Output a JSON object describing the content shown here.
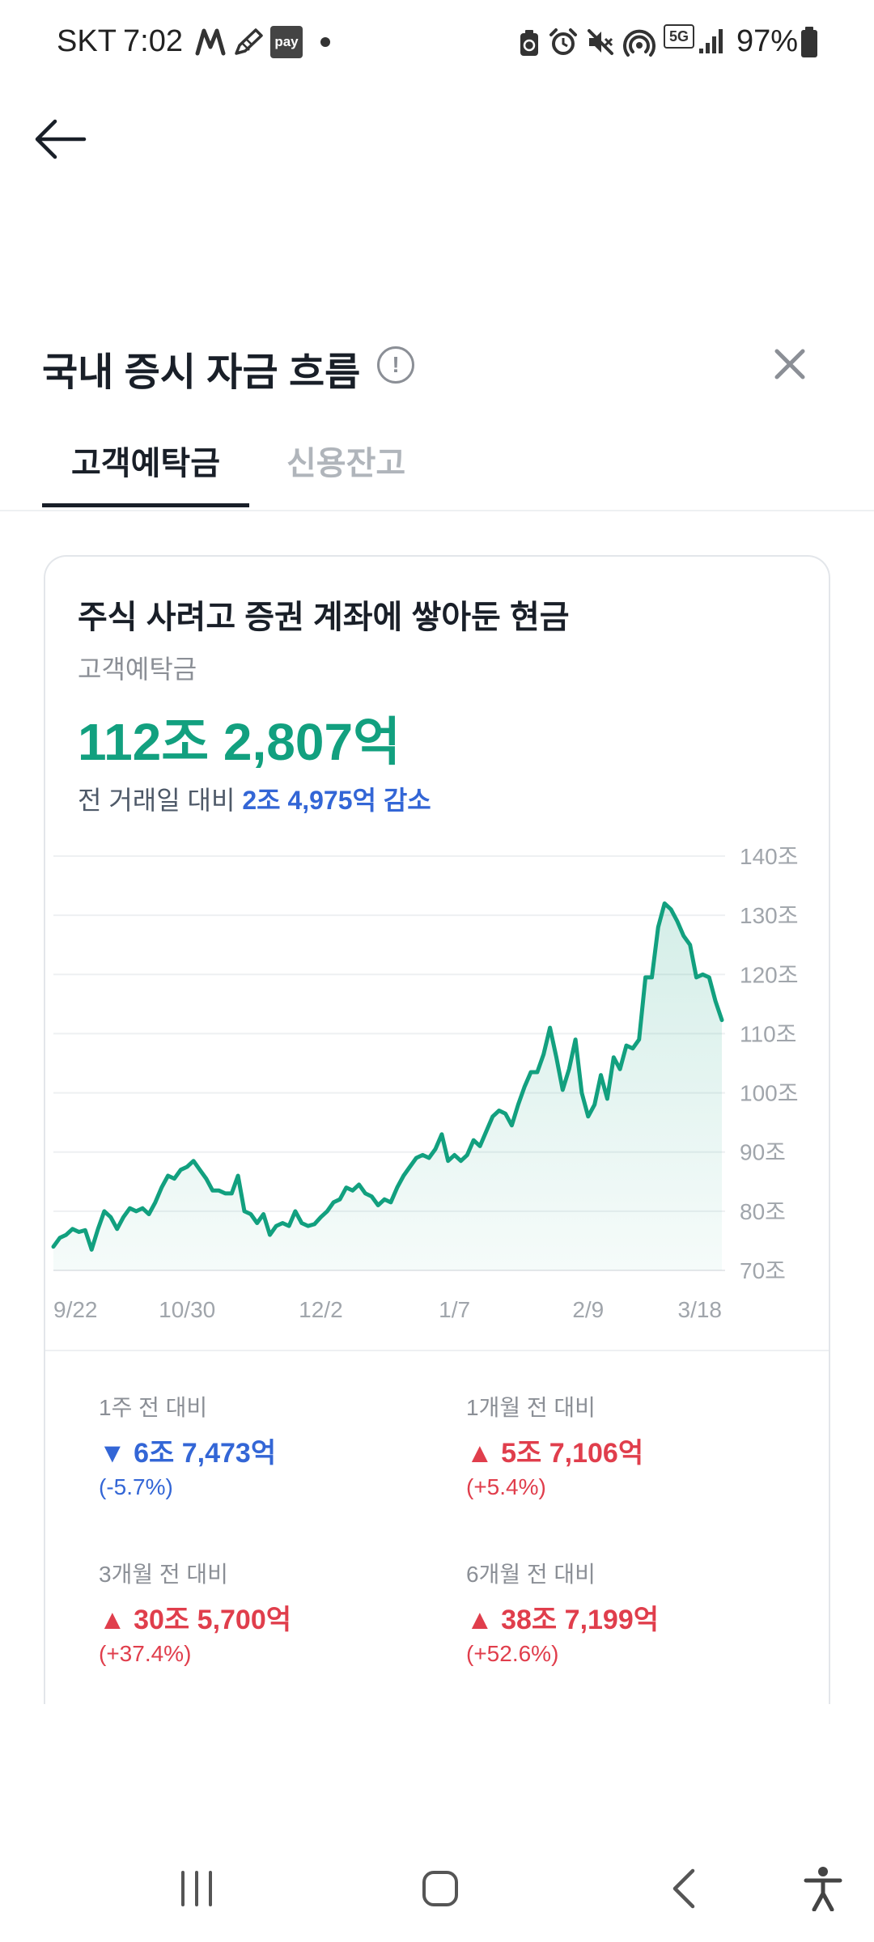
{
  "status_bar": {
    "carrier": "SKT",
    "time": "7:02",
    "pay_badge": "pay",
    "network": "5G",
    "battery": "97%",
    "icons": [
      "m-app-icon",
      "pencil-icon",
      "pay-icon",
      "dot-icon",
      "battery-saver-icon",
      "alarm-icon",
      "mute-icon",
      "hotspot-icon",
      "5g-icon",
      "signal-icon",
      "battery-icon"
    ]
  },
  "header": {
    "title": "국내 증시 자금 흐름",
    "info_glyph": "!"
  },
  "tabs": [
    {
      "label": "고객예탁금",
      "active": true
    },
    {
      "label": "신용잔고",
      "active": false
    }
  ],
  "card": {
    "title": "주식 사려고 증권 계좌에 쌓아둔 현금",
    "subtitle": "고객예탁금",
    "value": "112조 2,807억",
    "compare_prefix": "전 거래일 대비",
    "compare_delta": "2조 4,975억 감소"
  },
  "chart_data": {
    "type": "area",
    "x_tick_labels": [
      "9/22",
      "10/30",
      "12/2",
      "1/7",
      "2/9",
      "3/18"
    ],
    "y_tick_labels": [
      "140조",
      "130조",
      "120조",
      "110조",
      "100조",
      "90조",
      "80조",
      "70조"
    ],
    "ylim": [
      70,
      140
    ],
    "y_unit": "조",
    "grid": true,
    "line_color": "#12a07f",
    "values": [
      74,
      75.5,
      76,
      77,
      76.5,
      76.8,
      73.5,
      77,
      80,
      79,
      77,
      79,
      80.5,
      80,
      80.5,
      79.5,
      81.5,
      84,
      86,
      85.5,
      87,
      87.5,
      88.5,
      87,
      85.5,
      83.5,
      83.5,
      83,
      83,
      86,
      80,
      79.5,
      78,
      79.5,
      76,
      77.5,
      78,
      77.5,
      80,
      78,
      77.5,
      77.8,
      79,
      80,
      81.5,
      82,
      84,
      83.5,
      84.5,
      83,
      82.5,
      81,
      82,
      81.5,
      84,
      86,
      87.5,
      89,
      89.5,
      89,
      90.5,
      93,
      88.5,
      89.5,
      88.5,
      89.5,
      92,
      91,
      93.5,
      96,
      97,
      96.5,
      94.5,
      98,
      101,
      103.5,
      103.5,
      106.5,
      111,
      106,
      100.5,
      104,
      109,
      100,
      96,
      98,
      103,
      99,
      106,
      104,
      108,
      107.5,
      109,
      119.5,
      119.5,
      128,
      132,
      131,
      129,
      126.5,
      125,
      119.5,
      120,
      119.5,
      115.5,
      112.3
    ]
  },
  "stats": [
    {
      "label": "1주 전 대비",
      "arrow": "▼",
      "value": "6조 7,473억",
      "pct": "(-5.7%)",
      "direction": "down"
    },
    {
      "label": "1개월 전 대비",
      "arrow": "▲",
      "value": "5조 7,106억",
      "pct": "(+5.4%)",
      "direction": "up"
    },
    {
      "label": "3개월 전 대비",
      "arrow": "▲",
      "value": "30조 5,700억",
      "pct": "(+37.4%)",
      "direction": "up"
    },
    {
      "label": "6개월 전 대비",
      "arrow": "▲",
      "value": "38조 7,199억",
      "pct": "(+52.6%)",
      "direction": "up"
    }
  ],
  "nav_bar": {
    "icons": [
      "recent-apps-icon",
      "home-icon",
      "back-nav-icon",
      "accessibility-icon"
    ]
  }
}
